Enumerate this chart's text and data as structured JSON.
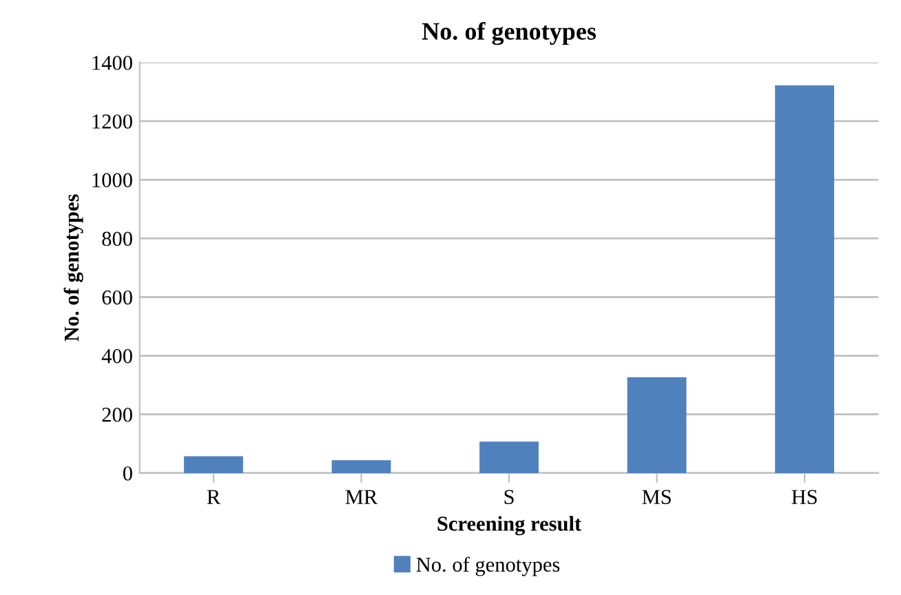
{
  "chart_data": {
    "type": "bar",
    "title": "No. of genotypes",
    "xlabel": "Screening result",
    "ylabel": "No. of genotypes",
    "categories": [
      "R",
      "MR",
      "S",
      "MS",
      "HS"
    ],
    "series": [
      {
        "name": "No. of genotypes",
        "color": "#4f81bd",
        "values": [
          57,
          44,
          107,
          327,
          1322
        ]
      }
    ],
    "ylim": [
      0,
      1400
    ],
    "yticks": [
      0,
      200,
      400,
      600,
      800,
      1000,
      1200,
      1400
    ],
    "grid": "y",
    "legend": "bottom"
  }
}
